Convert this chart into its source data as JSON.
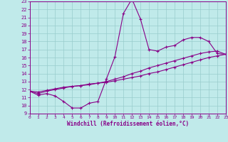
{
  "title": "",
  "xlabel": "Windchill (Refroidissement éolien,°C)",
  "ylabel": "",
  "background_color": "#c0eaea",
  "line_color": "#880088",
  "grid_color": "#99cccc",
  "xmin": 0,
  "xmax": 23,
  "ymin": 9,
  "ymax": 23,
  "line1_x": [
    0,
    1,
    2,
    3,
    4,
    5,
    6,
    7,
    8,
    9,
    10,
    11,
    12,
    13,
    14,
    15,
    16,
    17,
    18,
    19,
    20,
    21,
    22,
    23
  ],
  "line1_y": [
    11.8,
    11.3,
    11.5,
    11.2,
    10.5,
    9.7,
    9.7,
    10.3,
    10.5,
    13.3,
    16.1,
    21.5,
    23.3,
    20.8,
    17.0,
    16.8,
    17.3,
    17.5,
    18.2,
    18.5,
    18.5,
    18.0,
    16.5,
    16.4
  ],
  "line2_x": [
    0,
    1,
    2,
    3,
    4,
    5,
    6,
    7,
    8,
    9,
    10,
    11,
    12,
    13,
    14,
    15,
    16,
    17,
    18,
    19,
    20,
    21,
    22,
    23
  ],
  "line2_y": [
    11.8,
    11.5,
    11.8,
    12.0,
    12.2,
    12.4,
    12.5,
    12.6,
    12.8,
    12.9,
    13.1,
    13.3,
    13.5,
    13.7,
    14.0,
    14.2,
    14.5,
    14.8,
    15.1,
    15.4,
    15.7,
    16.0,
    16.2,
    16.4
  ],
  "line3_x": [
    0,
    1,
    2,
    3,
    4,
    5,
    6,
    7,
    8,
    9,
    10,
    11,
    12,
    13,
    14,
    15,
    16,
    17,
    18,
    19,
    20,
    21,
    22,
    23
  ],
  "line3_y": [
    11.8,
    11.7,
    11.9,
    12.1,
    12.3,
    12.4,
    12.5,
    12.7,
    12.8,
    13.0,
    13.3,
    13.6,
    14.0,
    14.3,
    14.7,
    15.0,
    15.3,
    15.6,
    15.9,
    16.2,
    16.5,
    16.7,
    16.8,
    16.4
  ]
}
